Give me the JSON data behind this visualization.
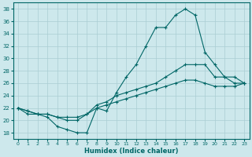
{
  "xlabel": "Humidex (Indice chaleur)",
  "xlim": [
    -0.5,
    23.5
  ],
  "ylim": [
    17,
    39
  ],
  "yticks": [
    18,
    20,
    22,
    24,
    26,
    28,
    30,
    32,
    34,
    36,
    38
  ],
  "xticks": [
    0,
    1,
    2,
    3,
    4,
    5,
    6,
    7,
    8,
    9,
    10,
    11,
    12,
    13,
    14,
    15,
    16,
    17,
    18,
    19,
    20,
    21,
    22,
    23
  ],
  "background_color": "#cde8ec",
  "grid_color": "#aacdd3",
  "line_color": "#006666",
  "line1": [
    22,
    21,
    21,
    20.5,
    19,
    18.5,
    18,
    18,
    22,
    21.5,
    24.5,
    27,
    29,
    32,
    35,
    35,
    37,
    38,
    37,
    31,
    29,
    27,
    27,
    26
  ],
  "line2": [
    22,
    21.5,
    21,
    21,
    20.5,
    20,
    20,
    21,
    22.5,
    23,
    24,
    24.5,
    25,
    25.5,
    26,
    27,
    28,
    29,
    29,
    29,
    27,
    27,
    26,
    26
  ],
  "line3": [
    22,
    21.5,
    21,
    21,
    20.5,
    20.5,
    20.5,
    21,
    22,
    22.5,
    23,
    23.5,
    24,
    24.5,
    25,
    25.5,
    26,
    26.5,
    26.5,
    26,
    25.5,
    25.5,
    25.5,
    26
  ]
}
